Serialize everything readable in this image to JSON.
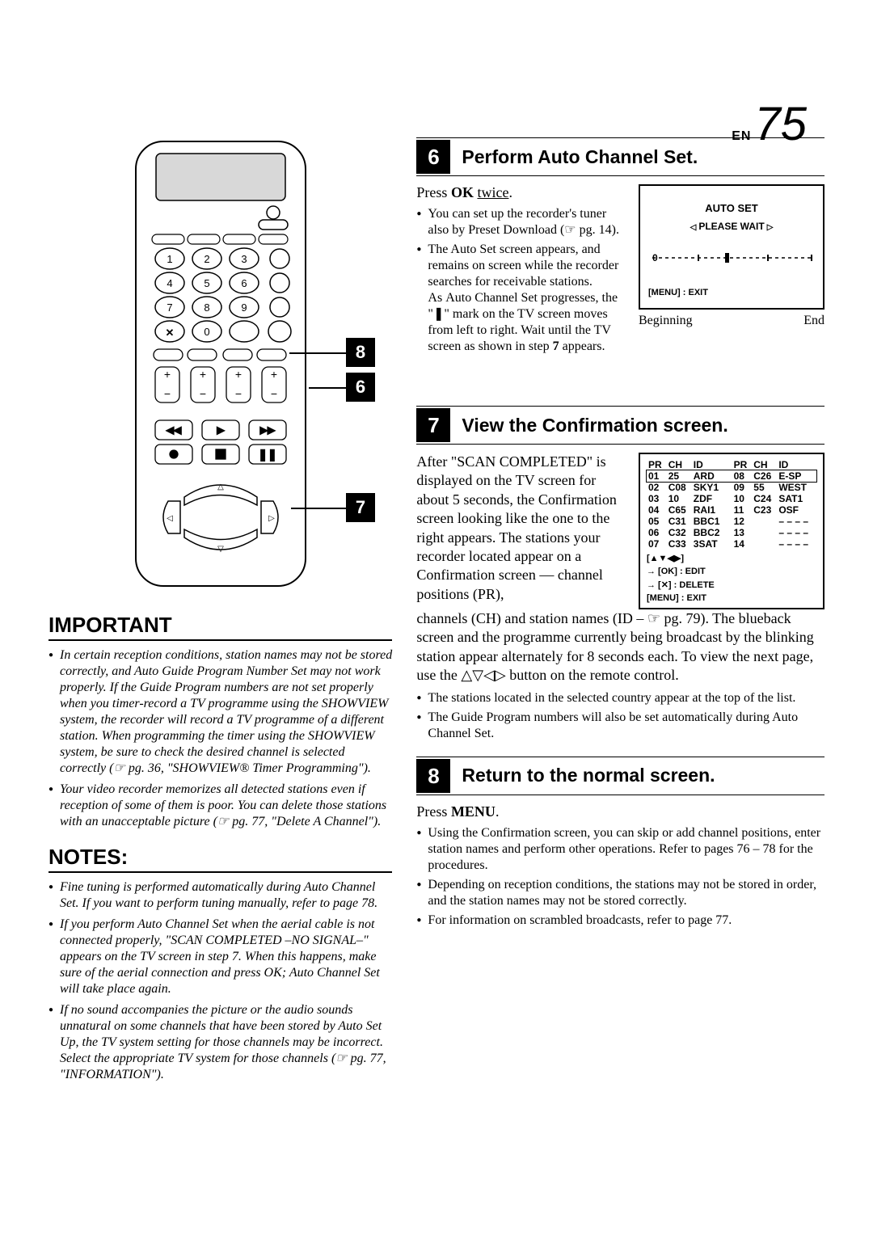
{
  "page": {
    "prefix": "EN",
    "number": "75"
  },
  "callouts": {
    "c6": "6",
    "c7": "7",
    "c8": "8"
  },
  "step6": {
    "num": "6",
    "title": "Perform Auto Channel Set.",
    "press": "Press OK twice.",
    "ok": "OK",
    "twice": "twice",
    "b1": "You can set up the recorder's tuner also by Preset Download (☞ pg. 14).",
    "b2": "The Auto Set screen appears, and remains on screen while the recorder searches for receivable stations. As Auto Channel Set progresses, the \"❚\" mark on the TV screen moves from left to right. Wait until the TV screen as shown in step 7 appears.",
    "tv_autoset": "AUTO SET",
    "tv_please": "PLEASE WAIT",
    "tv_menu": "[MENU] : EXIT",
    "beg": "Beginning",
    "end": "End"
  },
  "step7": {
    "num": "7",
    "title": "View the Confirmation screen.",
    "para1": "After \"SCAN COMPLETED\" is displayed on the TV screen for about 5 seconds, the Confirmation screen looking like the one to the right appears. The stations your recorder located appear on a Confirmation screen — channel positions (PR),",
    "para2": "channels (CH) and station names (ID – ☞ pg. 79). The blueback screen and the programme currently being broadcast by the blinking station appear alternately for 8 seconds each. To view the next page, use the △▽◁▷ button on the remote control.",
    "b1": "The stations located in the selected country appear at the top of the list.",
    "b2": "The Guide Program numbers will also be set automatically during Auto Channel Set.",
    "hdr": [
      "PR",
      "CH",
      "ID",
      "",
      "PR",
      "CH",
      "ID"
    ],
    "rows": [
      [
        "01",
        "25",
        "ARD",
        "",
        "08",
        "C26",
        "E-SP"
      ],
      [
        "02",
        "C08",
        "SKY1",
        "",
        "09",
        "55",
        "WEST"
      ],
      [
        "03",
        "10",
        "ZDF",
        "",
        "10",
        "C24",
        "SAT1"
      ],
      [
        "04",
        "C65",
        "RAI1",
        "",
        "11",
        "C23",
        "OSF"
      ],
      [
        "05",
        "C31",
        "BBC1",
        "",
        "12",
        "",
        "– – – –"
      ],
      [
        "06",
        "C32",
        "BBC2",
        "",
        "13",
        "",
        "– – – –"
      ],
      [
        "07",
        "C33",
        "3SAT",
        "",
        "14",
        "",
        "– – – –"
      ]
    ],
    "leg1": "[▲▼◀▶]",
    "leg2": "→ [OK] : EDIT",
    "leg3": "→ [✕] : DELETE",
    "leg4": "[MENU] : EXIT"
  },
  "step8": {
    "num": "8",
    "title": "Return to the normal screen.",
    "press_pre": "Press ",
    "press_bold": "MENU",
    "press_post": ".",
    "b1": "Using the Confirmation screen, you can skip or add channel positions, enter station names and perform other operations. Refer to pages 76 – 78 for the procedures.",
    "b2": "Depending on reception conditions, the stations may not be stored in order, and the station names may not be stored correctly.",
    "b3": "For information on scrambled broadcasts, refer to page 77."
  },
  "important": {
    "title": "IMPORTANT",
    "b1": "In certain reception conditions, station names may not be stored correctly, and Auto Guide Program Number Set may not work properly. If the Guide Program numbers are not set properly when you timer-record a TV programme using the SHOWVIEW system, the recorder will record a TV programme of a different station. When programming the timer using the SHOWVIEW system, be sure to check the desired channel is selected correctly (☞ pg. 36, \"SHOWVIEW® Timer Programming\").",
    "b2": "Your video recorder memorizes all detected stations even if reception of some of them is poor. You can delete those stations with an unacceptable picture (☞ pg. 77, \"Delete A Channel\")."
  },
  "notes": {
    "title": "NOTES:",
    "b1": "Fine tuning is performed automatically during Auto Channel Set. If you want to perform tuning manually, refer to page 78.",
    "b2": "If you perform Auto Channel Set when the aerial cable is not connected properly, \"SCAN COMPLETED –NO SIGNAL–\" appears on the TV screen in step 7. When this happens, make sure of the aerial connection and press OK; Auto Channel Set will take place again.",
    "b3": "If no sound accompanies the picture or the audio sounds unnatural on some channels that have been stored by Auto Set Up, the TV system setting for those channels may be incorrect. Select the appropriate TV system for those channels (☞ pg. 77, \"INFORMATION\")."
  }
}
